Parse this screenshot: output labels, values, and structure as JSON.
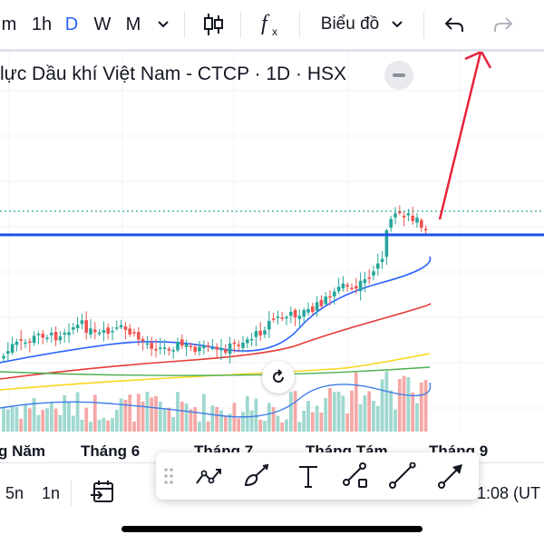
{
  "toolbar": {
    "intervals": [
      "m",
      "1h",
      "D",
      "W",
      "M"
    ],
    "active_interval": "D",
    "chart_menu_label": "Biểu đồ",
    "icons": [
      "chevron-down-icon",
      "candlestick-icon",
      "indicators-fx-icon",
      "chevron-down-icon",
      "undo-icon",
      "redo-icon"
    ]
  },
  "legend": {
    "title": "lực Dầu khí Việt Nam - CTCP · 1D · HSX"
  },
  "x_axis_labels": [
    "g Năm",
    "Tháng 6",
    "Tháng 7",
    "Tháng Tám",
    "Tháng 9"
  ],
  "bottom": {
    "ranges": [
      "5n",
      "1n"
    ],
    "time_text": "1:08 (UT"
  },
  "drawing_tools": [
    "drag-handle-icon",
    "trend-line-icon",
    "brush-icon",
    "text-tool-icon",
    "path-tool-icon",
    "line-tool-icon",
    "arrow-tool-icon"
  ],
  "colors": {
    "up": "#26a69a",
    "down": "#ef5350",
    "ma_fast": "#2962ff",
    "ma_mid": "#e53935",
    "ma_slow": "#f9d71c",
    "ma_long": "#4caf50",
    "horizontal_line": "#1e53e5",
    "annotation_arrow": "#e8223a"
  },
  "chart_data": {
    "type": "candlestick",
    "grid": true,
    "note": "Daily OHLC candles with moving averages and volume; prices unlabeled in screenshot (relative)"
  }
}
